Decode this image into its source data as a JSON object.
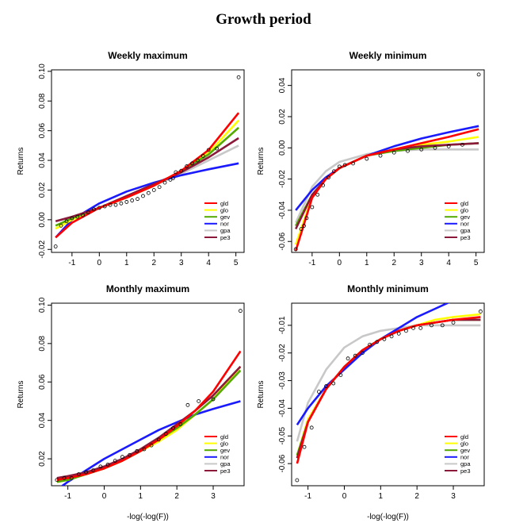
{
  "title": "Growth period",
  "legend_labels": [
    "gld",
    "glo",
    "gev",
    "nor",
    "gpa",
    "pe3"
  ],
  "colors": {
    "gld": "#ff0000",
    "glo": "#ffff00",
    "gev": "#55aa00",
    "nor": "#1a1aff",
    "gpa": "#c8c8c8",
    "pe3": "#8b1a3a"
  },
  "chart_data": [
    {
      "type": "line",
      "title": "Weekly maximum",
      "ylabel": "Returns",
      "xlabel": "",
      "xlim": [
        -1.75,
        5.3
      ],
      "ylim": [
        -0.022,
        0.101
      ],
      "xticks": [
        -1,
        0,
        1,
        2,
        3,
        4,
        5
      ],
      "yticks": [
        -0.02,
        0.0,
        0.02,
        0.04,
        0.06,
        0.08,
        0.1
      ],
      "ytick_labels": [
        "-0.02",
        "0.00",
        "0.02",
        "0.04",
        "0.06",
        "0.08",
        "0.10"
      ],
      "legend": "bottom-right",
      "points": {
        "x": [
          -1.6,
          -1.4,
          -1.2,
          -1.0,
          -0.8,
          -0.6,
          -0.4,
          -0.2,
          0.0,
          0.2,
          0.4,
          0.6,
          0.8,
          1.0,
          1.2,
          1.4,
          1.6,
          1.8,
          2.0,
          2.2,
          2.4,
          2.6,
          2.7,
          2.8,
          3.0,
          3.2,
          3.4,
          3.6,
          3.8,
          4.0,
          4.3,
          5.1
        ],
        "y": [
          -0.018,
          -0.004,
          -0.001,
          0.001,
          0.002,
          0.003,
          0.005,
          0.007,
          0.008,
          0.009,
          0.01,
          0.01,
          0.011,
          0.012,
          0.013,
          0.014,
          0.016,
          0.018,
          0.02,
          0.022,
          0.025,
          0.027,
          0.028,
          0.032,
          0.033,
          0.036,
          0.038,
          0.04,
          0.043,
          0.047,
          0.048,
          0.096
        ]
      },
      "series": [
        {
          "name": "gld",
          "x": [
            -1.6,
            -1.0,
            0.0,
            1.0,
            2.0,
            3.0,
            4.0,
            5.1
          ],
          "y": [
            -0.012,
            -0.002,
            0.008,
            0.015,
            0.023,
            0.033,
            0.047,
            0.072
          ]
        },
        {
          "name": "glo",
          "x": [
            -1.6,
            -1.0,
            0.0,
            1.0,
            2.0,
            3.0,
            4.0,
            5.1
          ],
          "y": [
            -0.006,
            0.0,
            0.008,
            0.015,
            0.023,
            0.033,
            0.045,
            0.067
          ]
        },
        {
          "name": "gev",
          "x": [
            -1.6,
            -1.0,
            0.0,
            1.0,
            2.0,
            3.0,
            4.0,
            5.1
          ],
          "y": [
            -0.004,
            0.001,
            0.008,
            0.015,
            0.023,
            0.033,
            0.044,
            0.062
          ]
        },
        {
          "name": "nor",
          "x": [
            -1.6,
            -1.0,
            0.0,
            1.0,
            2.0,
            3.0,
            4.0,
            5.1
          ],
          "y": [
            -0.012,
            0.0,
            0.011,
            0.019,
            0.025,
            0.03,
            0.034,
            0.038
          ]
        },
        {
          "name": "gpa",
          "x": [
            -1.6,
            -1.0,
            0.0,
            1.0,
            2.0,
            3.0,
            4.0,
            5.1
          ],
          "y": [
            -0.001,
            0.002,
            0.008,
            0.015,
            0.023,
            0.031,
            0.04,
            0.05
          ]
        },
        {
          "name": "pe3",
          "x": [
            -1.6,
            -1.0,
            0.0,
            1.0,
            2.0,
            3.0,
            4.0,
            5.1
          ],
          "y": [
            -0.001,
            0.002,
            0.008,
            0.016,
            0.024,
            0.032,
            0.042,
            0.055
          ]
        }
      ]
    },
    {
      "type": "line",
      "title": "Weekly minimum",
      "ylabel": "Returns",
      "xlabel": "",
      "xlim": [
        -1.75,
        5.3
      ],
      "ylim": [
        -0.067,
        0.05
      ],
      "xticks": [
        -1,
        0,
        1,
        2,
        3,
        4,
        5
      ],
      "yticks": [
        -0.06,
        -0.04,
        -0.02,
        0.0,
        0.02,
        0.04
      ],
      "ytick_labels": [
        "-0.06",
        "-0.04",
        "-0.02",
        "0.00",
        "0.02",
        "0.04"
      ],
      "legend": "bottom-right",
      "points": {
        "x": [
          -1.6,
          -1.4,
          -1.3,
          -1.2,
          -1.0,
          -0.8,
          -0.6,
          -0.4,
          -0.2,
          0.0,
          0.2,
          0.5,
          1.0,
          1.5,
          2.0,
          2.5,
          3.0,
          3.5,
          4.0,
          4.5,
          5.1
        ],
        "y": [
          -0.065,
          -0.052,
          -0.05,
          -0.045,
          -0.038,
          -0.03,
          -0.024,
          -0.019,
          -0.015,
          -0.012,
          -0.011,
          -0.01,
          -0.007,
          -0.005,
          -0.003,
          -0.002,
          -0.001,
          0.0,
          0.001,
          0.002,
          0.047
        ]
      },
      "series": [
        {
          "name": "gld",
          "x": [
            -1.6,
            -1.0,
            -0.5,
            0.0,
            1.0,
            2.0,
            3.0,
            4.0,
            5.1
          ],
          "y": [
            -0.066,
            -0.032,
            -0.02,
            -0.013,
            -0.005,
            -0.001,
            0.003,
            0.007,
            0.012
          ]
        },
        {
          "name": "glo",
          "x": [
            -1.6,
            -1.0,
            -0.5,
            0.0,
            1.0,
            2.0,
            3.0,
            4.0,
            5.1
          ],
          "y": [
            -0.062,
            -0.031,
            -0.02,
            -0.013,
            -0.005,
            -0.001,
            0.002,
            0.004,
            0.007
          ]
        },
        {
          "name": "gev",
          "x": [
            -1.6,
            -1.0,
            -0.5,
            0.0,
            1.0,
            2.0,
            3.0,
            4.0,
            5.1
          ],
          "y": [
            -0.05,
            -0.03,
            -0.02,
            -0.013,
            -0.005,
            -0.002,
            0.0,
            0.002,
            0.003
          ]
        },
        {
          "name": "nor",
          "x": [
            -1.6,
            -1.0,
            -0.5,
            0.0,
            1.0,
            2.0,
            3.0,
            4.0,
            5.1
          ],
          "y": [
            -0.04,
            -0.027,
            -0.019,
            -0.013,
            -0.005,
            0.001,
            0.006,
            0.01,
            0.014
          ]
        },
        {
          "name": "gpa",
          "x": [
            -1.6,
            -1.0,
            -0.5,
            0.0,
            1.0,
            2.0,
            3.0,
            4.0,
            5.1
          ],
          "y": [
            -0.048,
            -0.025,
            -0.015,
            -0.009,
            -0.004,
            -0.002,
            -0.001,
            -0.001,
            -0.001
          ]
        },
        {
          "name": "pe3",
          "x": [
            -1.6,
            -1.0,
            -0.5,
            0.0,
            1.0,
            2.0,
            3.0,
            4.0,
            5.1
          ],
          "y": [
            -0.052,
            -0.03,
            -0.02,
            -0.013,
            -0.005,
            -0.001,
            0.001,
            0.002,
            0.003
          ]
        }
      ]
    },
    {
      "type": "line",
      "title": "Monthly maximum",
      "ylabel": "Returns",
      "xlabel": "-log(-log(F))",
      "xlim": [
        -1.45,
        3.85
      ],
      "ylim": [
        0.006,
        0.101
      ],
      "xticks": [
        -1,
        0,
        1,
        2,
        3
      ],
      "yticks": [
        0.02,
        0.04,
        0.06,
        0.08,
        0.1
      ],
      "ytick_labels": [
        "0.02",
        "0.04",
        "0.06",
        "0.08",
        "0.10"
      ],
      "legend": "bottom-right",
      "points": {
        "x": [
          -1.3,
          -1.1,
          -0.9,
          -0.7,
          -0.5,
          -0.3,
          -0.1,
          0.1,
          0.3,
          0.5,
          0.7,
          0.9,
          1.1,
          1.3,
          1.5,
          1.7,
          1.9,
          2.1,
          2.3,
          2.6,
          3.0,
          3.75
        ],
        "y": [
          0.009,
          0.01,
          0.01,
          0.012,
          0.013,
          0.014,
          0.016,
          0.017,
          0.019,
          0.021,
          0.022,
          0.024,
          0.025,
          0.027,
          0.03,
          0.033,
          0.036,
          0.038,
          0.048,
          0.05,
          0.051,
          0.097
        ]
      },
      "series": [
        {
          "name": "gld",
          "x": [
            -1.3,
            -1.0,
            -0.5,
            0.0,
            0.5,
            1.0,
            1.5,
            2.0,
            2.5,
            3.0,
            3.75
          ],
          "y": [
            0.009,
            0.01,
            0.012,
            0.015,
            0.019,
            0.024,
            0.03,
            0.037,
            0.045,
            0.055,
            0.076
          ]
        },
        {
          "name": "glo",
          "x": [
            -1.3,
            -1.0,
            -0.5,
            0.0,
            0.5,
            1.0,
            1.5,
            2.0,
            2.5,
            3.0,
            3.75
          ],
          "y": [
            0.008,
            0.009,
            0.012,
            0.015,
            0.019,
            0.024,
            0.029,
            0.035,
            0.043,
            0.051,
            0.068
          ]
        },
        {
          "name": "gev",
          "x": [
            -1.3,
            -1.0,
            -0.5,
            0.0,
            0.5,
            1.0,
            1.5,
            2.0,
            2.5,
            3.0,
            3.75
          ],
          "y": [
            0.008,
            0.009,
            0.012,
            0.015,
            0.019,
            0.024,
            0.03,
            0.036,
            0.043,
            0.051,
            0.066
          ]
        },
        {
          "name": "nor",
          "x": [
            -1.3,
            -1.0,
            -0.5,
            0.0,
            0.5,
            1.0,
            1.5,
            2.0,
            2.5,
            3.0,
            3.75
          ],
          "y": [
            0.004,
            0.008,
            0.014,
            0.02,
            0.025,
            0.03,
            0.035,
            0.039,
            0.043,
            0.046,
            0.05
          ]
        },
        {
          "name": "gpa",
          "x": [
            -1.3,
            -1.0,
            -0.5,
            0.0,
            0.5,
            1.0,
            1.5,
            2.0,
            2.5,
            3.0,
            3.75
          ],
          "y": [
            0.01,
            0.011,
            0.013,
            0.016,
            0.02,
            0.025,
            0.031,
            0.038,
            0.045,
            0.053,
            0.068
          ]
        },
        {
          "name": "pe3",
          "x": [
            -1.3,
            -1.0,
            -0.5,
            0.0,
            0.5,
            1.0,
            1.5,
            2.0,
            2.5,
            3.0,
            3.75
          ],
          "y": [
            0.01,
            0.011,
            0.013,
            0.016,
            0.02,
            0.025,
            0.031,
            0.038,
            0.045,
            0.053,
            0.068
          ]
        }
      ]
    },
    {
      "type": "line",
      "title": "Monthly minimum",
      "ylabel": "Returns",
      "xlabel": "-log(-log(F))",
      "xlim": [
        -1.45,
        3.85
      ],
      "ylim": [
        -0.068,
        -0.002
      ],
      "xticks": [
        -1,
        0,
        1,
        2,
        3
      ],
      "yticks": [
        -0.06,
        -0.05,
        -0.04,
        -0.03,
        -0.02,
        -0.01
      ],
      "ytick_labels": [
        "-0.06",
        "-0.05",
        "-0.04",
        "-0.03",
        "-0.02",
        "-0.01"
      ],
      "legend": "bottom-right",
      "points": {
        "x": [
          -1.3,
          -1.1,
          -0.9,
          -0.7,
          -0.5,
          -0.3,
          -0.1,
          0.1,
          0.3,
          0.5,
          0.7,
          0.9,
          1.1,
          1.3,
          1.5,
          1.7,
          1.9,
          2.1,
          2.4,
          2.7,
          3.0,
          3.75
        ],
        "y": [
          -0.066,
          -0.054,
          -0.047,
          -0.034,
          -0.032,
          -0.031,
          -0.028,
          -0.022,
          -0.021,
          -0.02,
          -0.017,
          -0.016,
          -0.015,
          -0.014,
          -0.013,
          -0.012,
          -0.011,
          -0.011,
          -0.01,
          -0.01,
          -0.009,
          -0.005
        ]
      },
      "series": [
        {
          "name": "gld",
          "x": [
            -1.3,
            -1.0,
            -0.5,
            0.0,
            0.5,
            1.0,
            1.5,
            2.0,
            2.5,
            3.0,
            3.75
          ],
          "y": [
            -0.06,
            -0.045,
            -0.033,
            -0.025,
            -0.019,
            -0.015,
            -0.012,
            -0.01,
            -0.009,
            -0.008,
            -0.007
          ]
        },
        {
          "name": "glo",
          "x": [
            -1.3,
            -1.0,
            -0.5,
            0.0,
            0.5,
            1.0,
            1.5,
            2.0,
            2.5,
            3.0,
            3.75
          ],
          "y": [
            -0.057,
            -0.044,
            -0.033,
            -0.025,
            -0.019,
            -0.015,
            -0.012,
            -0.01,
            -0.008,
            -0.007,
            -0.006
          ]
        },
        {
          "name": "gev",
          "x": [
            -1.3,
            -1.0,
            -0.5,
            0.0,
            0.5,
            1.0,
            1.5,
            2.0,
            2.5,
            3.0,
            3.75
          ],
          "y": [
            -0.057,
            -0.045,
            -0.033,
            -0.025,
            -0.019,
            -0.015,
            -0.012,
            -0.01,
            -0.009,
            -0.008,
            -0.008
          ]
        },
        {
          "name": "nor",
          "x": [
            -1.3,
            -1.0,
            -0.5,
            0.0,
            0.5,
            1.0,
            1.5,
            2.0,
            2.5,
            3.0,
            3.75
          ],
          "y": [
            -0.046,
            -0.04,
            -0.032,
            -0.026,
            -0.02,
            -0.015,
            -0.011,
            -0.007,
            -0.004,
            -0.001,
            0.003
          ]
        },
        {
          "name": "gpa",
          "x": [
            -1.3,
            -1.0,
            -0.5,
            0.0,
            0.5,
            1.0,
            1.5,
            2.0,
            2.5,
            3.0,
            3.75
          ],
          "y": [
            -0.052,
            -0.038,
            -0.026,
            -0.018,
            -0.014,
            -0.012,
            -0.011,
            -0.01,
            -0.01,
            -0.01,
            -0.01
          ]
        },
        {
          "name": "pe3",
          "x": [
            -1.3,
            -1.0,
            -0.5,
            0.0,
            0.5,
            1.0,
            1.5,
            2.0,
            2.5,
            3.0,
            3.75
          ],
          "y": [
            -0.058,
            -0.045,
            -0.033,
            -0.025,
            -0.019,
            -0.015,
            -0.012,
            -0.01,
            -0.009,
            -0.008,
            -0.008
          ]
        }
      ]
    }
  ]
}
